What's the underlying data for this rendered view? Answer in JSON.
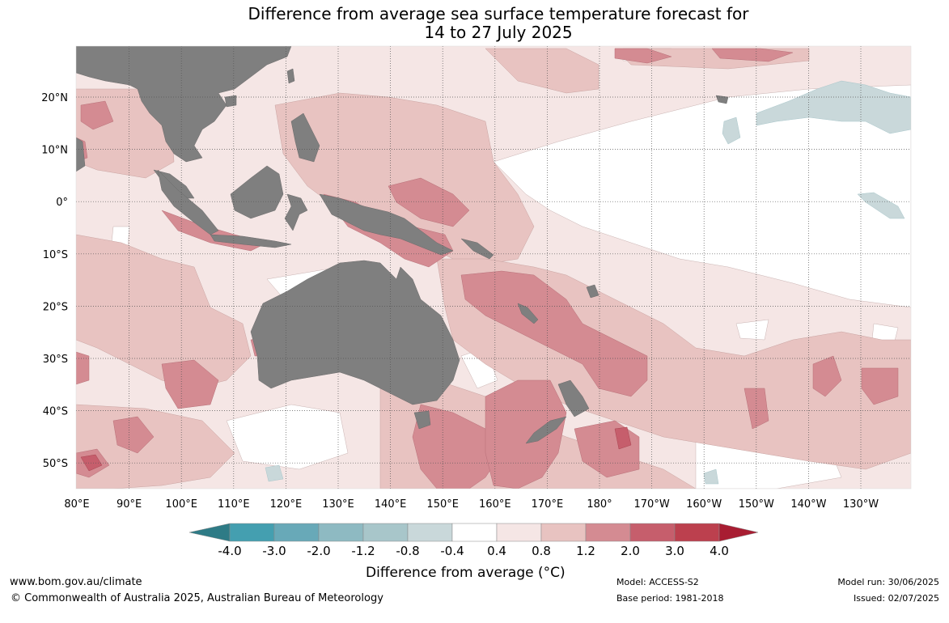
{
  "title": {
    "line1": "Difference from average sea surface temperature forecast for",
    "line2": "14 to 27 July 2025"
  },
  "map": {
    "lon_labels": [
      "80°E",
      "90°E",
      "100°E",
      "110°E",
      "120°E",
      "130°E",
      "140°E",
      "150°E",
      "160°E",
      "170°E",
      "180°",
      "170°W",
      "160°W",
      "150°W",
      "140°W",
      "130°W"
    ],
    "lat_labels": [
      "20°N",
      "10°N",
      "0°",
      "10°S",
      "20°S",
      "30°S",
      "40°S",
      "50°S"
    ],
    "lon_range": [
      "80°E",
      "130°W"
    ],
    "lat_range": [
      "55°S",
      "29°N"
    ]
  },
  "legend": {
    "title": "Difference from average (",
    "title_unit": "°C)",
    "ticks": [
      "-4.0",
      "-3.0",
      "-2.0",
      "-1.2",
      "-0.8",
      "-0.4",
      "0.4",
      "0.8",
      "1.2",
      "2.0",
      "3.0",
      "4.0"
    ],
    "colors": [
      "#2e7b86",
      "#449fb0",
      "#68a9b8",
      "#8ebac2",
      "#a8c6ca",
      "#c9d8da",
      "#ffffff",
      "#f5e6e5",
      "#e8c3c1",
      "#d48b92",
      "#c65e6c",
      "#bc404e",
      "#a81d32"
    ]
  },
  "footer": {
    "site": "www.bom.gov.au/climate",
    "copyright": "© Commonwealth of Australia 2025, Australian Bureau of Meteorology",
    "model": "Model: ACCESS-S2",
    "base_period": "Base period: 1981-2018",
    "model_run": "Model run: 30/06/2025",
    "issued": "Issued: 02/07/2025"
  },
  "colors": {
    "land": "#7f7f7f",
    "warm_light": "#f5e6e5",
    "warm_mid": "#e8c3c1",
    "warm_strong": "#d48b92",
    "warm_stronger": "#c65e6c",
    "cool_light": "#c9d8da",
    "neutral": "#ffffff"
  }
}
